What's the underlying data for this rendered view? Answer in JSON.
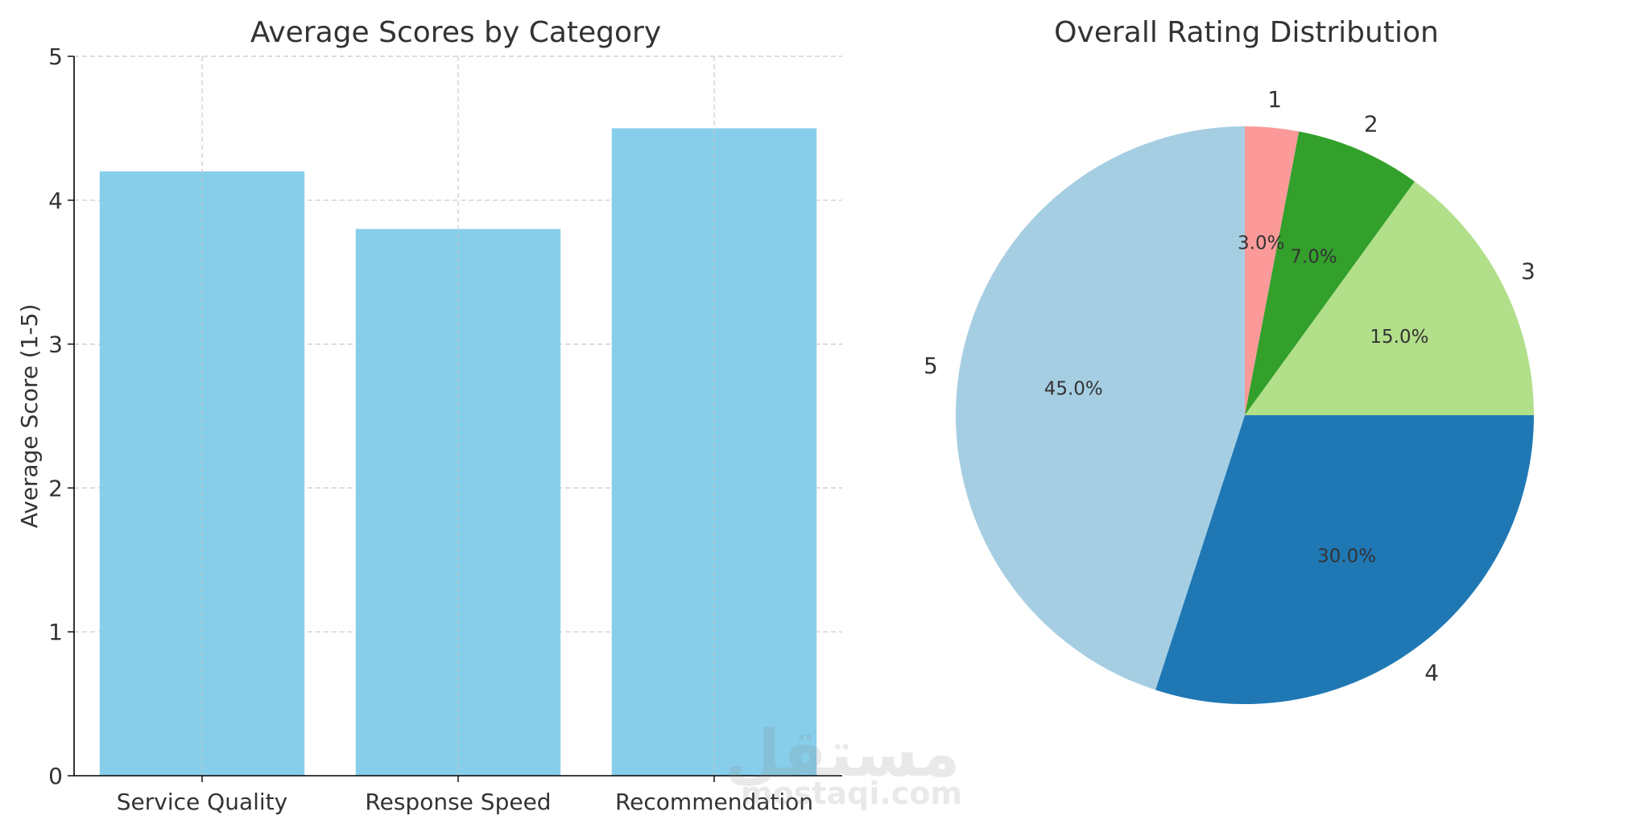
{
  "colors": {
    "bar": "#87ceeb",
    "grid": "#c8c8c8",
    "text": "#333333",
    "axis": "#000000",
    "pie": [
      "#fb9a99",
      "#33a02c",
      "#b2df8a",
      "#1f78b4",
      "#a6cee3"
    ]
  },
  "watermark": {
    "arabic": "مستقل",
    "url": "mostaqi.com"
  },
  "chart_data": [
    {
      "type": "bar",
      "title": "Average Scores by Category",
      "xlabel": "",
      "ylabel": "Average Score (1-5)",
      "categories": [
        "Service Quality",
        "Response Speed",
        "Recommendation"
      ],
      "values": [
        4.2,
        3.8,
        4.5
      ],
      "ylim": [
        0,
        5
      ],
      "yticks": [
        0,
        1,
        2,
        3,
        4,
        5
      ],
      "grid": true,
      "grid_style": "dashed"
    },
    {
      "type": "pie",
      "title": "Overall Rating Distribution",
      "labels": [
        "1",
        "2",
        "3",
        "4",
        "5"
      ],
      "values": [
        3.0,
        7.0,
        15.0,
        30.0,
        45.0
      ],
      "value_labels": [
        "3.0%",
        "7.0%",
        "15.0%",
        "30.0%",
        "45.0%"
      ],
      "start_angle_deg": 90,
      "direction": "clockwise"
    }
  ]
}
